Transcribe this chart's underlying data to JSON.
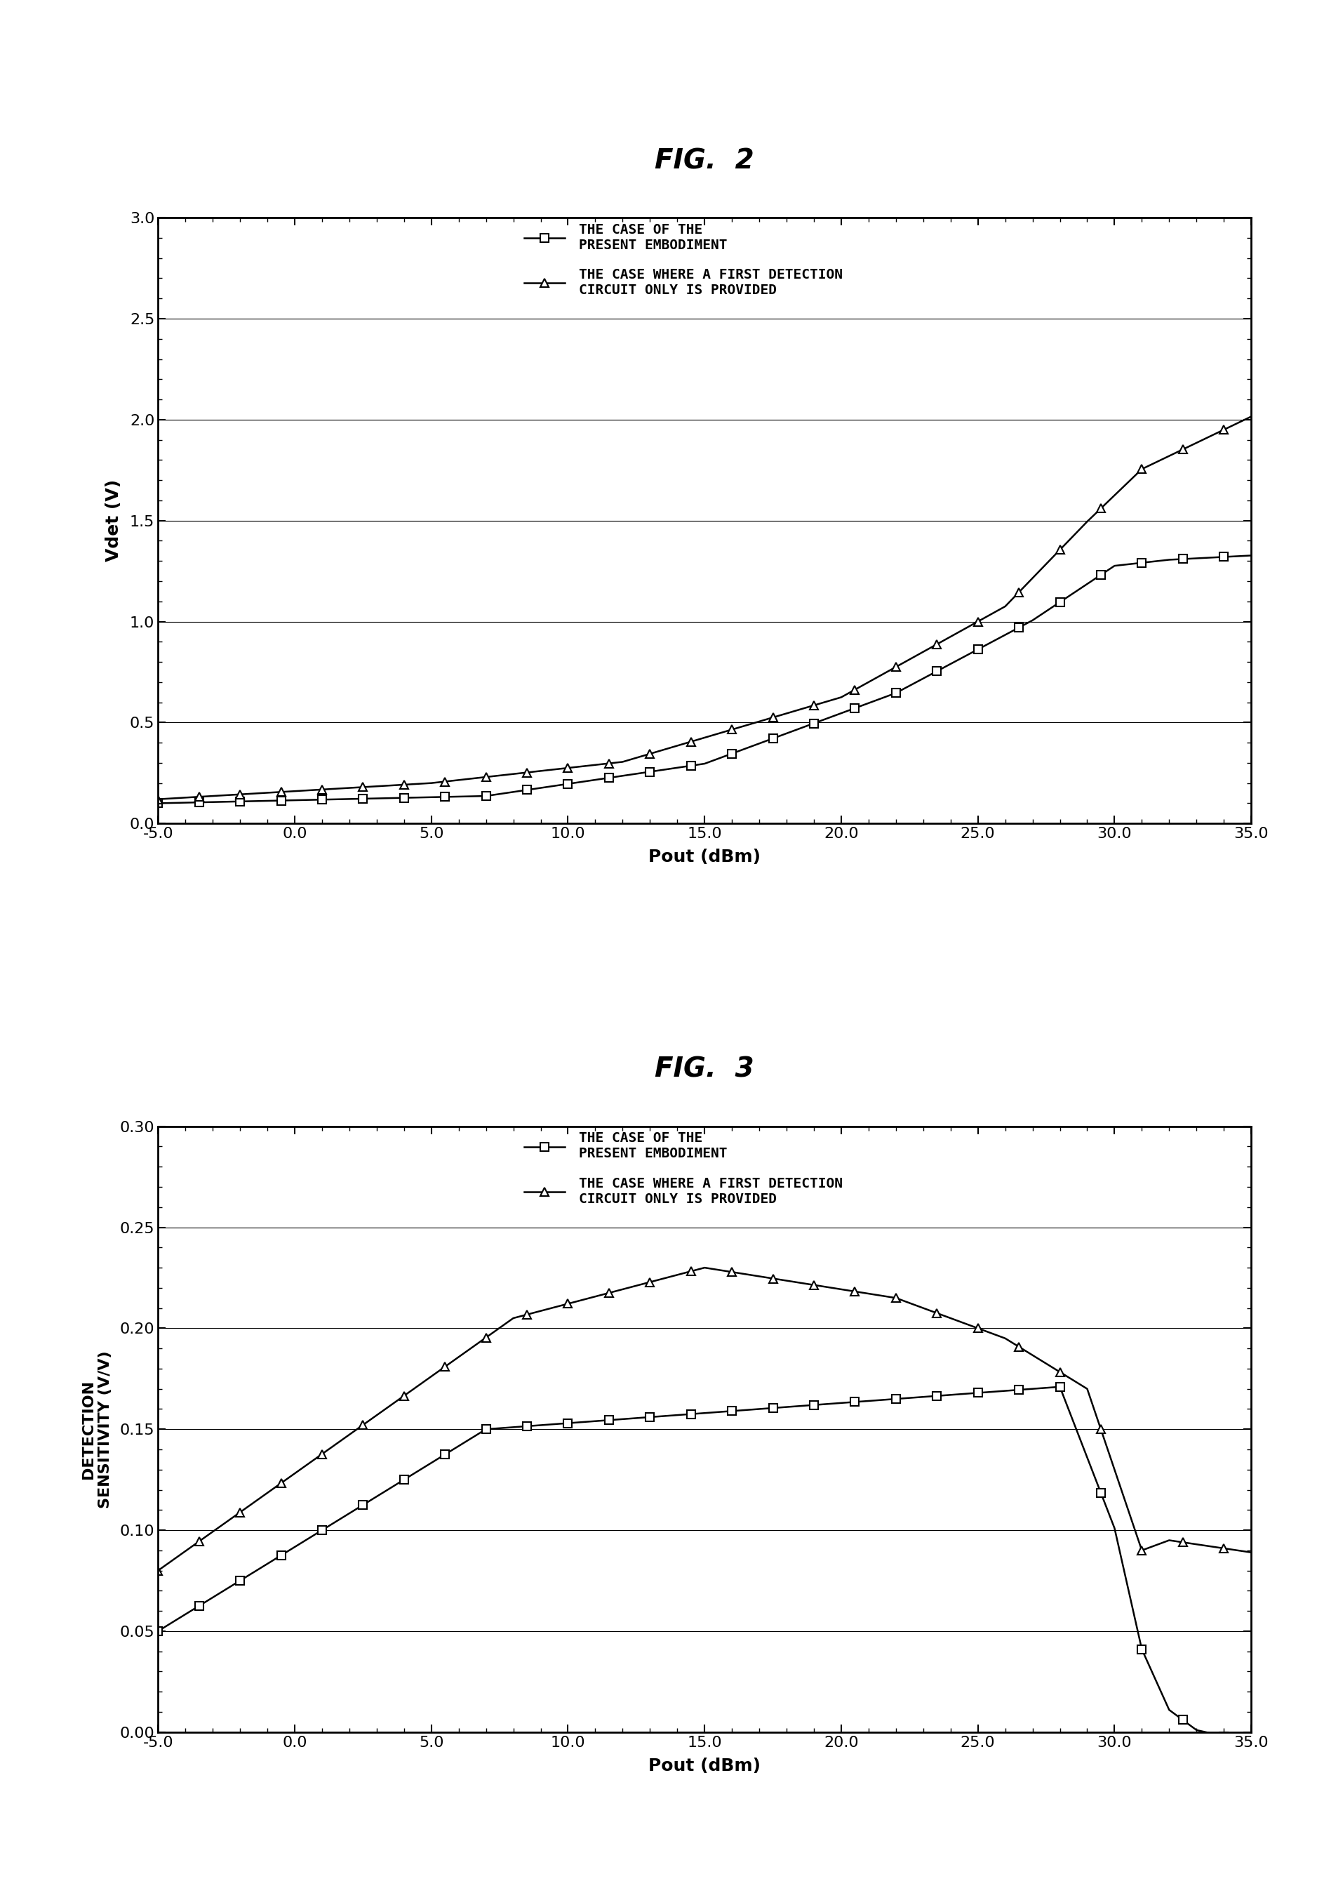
{
  "fig2_title": "FIG.  2",
  "fig3_title": "FIG.  3",
  "fig2_xlabel": "Pout (dBm)",
  "fig2_ylabel": "Vdet (V)",
  "fig2_xlim": [
    -5.0,
    35.0
  ],
  "fig2_ylim": [
    0.0,
    3.0
  ],
  "fig2_xticks": [
    -5.0,
    0.0,
    5.0,
    10.0,
    15.0,
    20.0,
    25.0,
    30.0,
    35.0
  ],
  "fig2_yticks": [
    0.0,
    0.5,
    1.0,
    1.5,
    2.0,
    2.5,
    3.0
  ],
  "fig3_xlabel": "Pout (dBm)",
  "fig3_ylabel": "DETECTION\nSENSITIVITY (V/V)",
  "fig3_xlim": [
    -5.0,
    35.0
  ],
  "fig3_ylim": [
    0.0,
    0.3
  ],
  "fig3_xticks": [
    -5.0,
    0.0,
    5.0,
    10.0,
    15.0,
    20.0,
    25.0,
    30.0,
    35.0
  ],
  "fig3_yticks": [
    0.0,
    0.05,
    0.1,
    0.15,
    0.2,
    0.25,
    0.3
  ],
  "legend_label_square": "THE CASE OF THE\nPRESENT EMBODIMENT",
  "legend_label_triangle": "THE CASE WHERE A FIRST DETECTION\nCIRCUIT ONLY IS PROVIDED",
  "background_color": "#ffffff",
  "line_color": "#000000"
}
